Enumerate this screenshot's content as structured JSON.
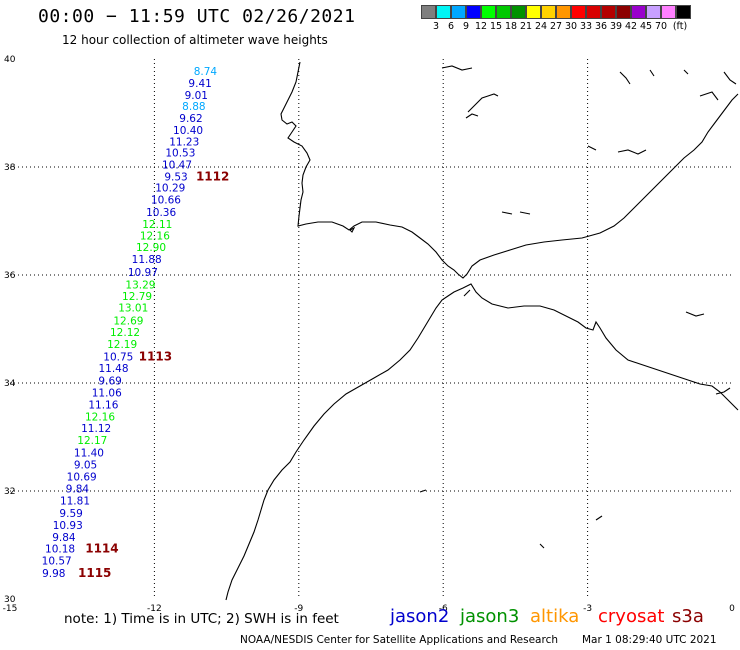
{
  "header": {
    "title": "00:00 − 11:59 UTC 02/26/2021",
    "subtitle": "12 hour collection of altimeter wave heights"
  },
  "colorbar": {
    "colors": [
      "#7f7f7f",
      "#00f5f5",
      "#00a8ff",
      "#0000ff",
      "#00ff00",
      "#00c800",
      "#009100",
      "#ffff00",
      "#ffd200",
      "#ff9600",
      "#ff0000",
      "#d70000",
      "#b40000",
      "#8c0000",
      "#9900cc",
      "#c8a0ff",
      "#ff80ff",
      "#000000"
    ],
    "labels": [
      "3",
      "6",
      "9",
      "12",
      "15",
      "18",
      "21",
      "24",
      "27",
      "30",
      "33",
      "36",
      "39",
      "42",
      "45",
      "70",
      "(ft)"
    ]
  },
  "chart_data": {
    "type": "scatter",
    "xlim": [
      -15,
      0
    ],
    "ylim": [
      30,
      40
    ],
    "x_ticks": [
      "-15",
      "-12",
      "-9",
      "-6",
      "-3",
      "0"
    ],
    "y_ticks": [
      "30",
      "32",
      "34",
      "36",
      "38",
      "40"
    ],
    "units": "ft",
    "points": [
      {
        "lon": -10.94,
        "lat": 39.7,
        "value": "8.74",
        "color": "#00a8ff"
      },
      {
        "lon": -11.05,
        "lat": 39.48,
        "value": "9.41",
        "color": "#0000cd"
      },
      {
        "lon": -11.13,
        "lat": 39.26,
        "value": "9.01",
        "color": "#0000cd"
      },
      {
        "lon": -11.18,
        "lat": 39.06,
        "value": "8.88",
        "color": "#00a8ff"
      },
      {
        "lon": -11.24,
        "lat": 38.83,
        "value": "9.62",
        "color": "#0000cd"
      },
      {
        "lon": -11.3,
        "lat": 38.61,
        "value": "10.40",
        "color": "#0000cd"
      },
      {
        "lon": -11.38,
        "lat": 38.4,
        "value": "11.23",
        "color": "#0000cd"
      },
      {
        "lon": -11.46,
        "lat": 38.19,
        "value": "10.53",
        "color": "#0000cd"
      },
      {
        "lon": -11.53,
        "lat": 37.97,
        "value": "10.47",
        "color": "#0000cd"
      },
      {
        "lon": -11.55,
        "lat": 37.75,
        "value": "9.53",
        "color": "#0000cd"
      },
      {
        "lon": -11.67,
        "lat": 37.55,
        "value": "10.29",
        "color": "#0000cd"
      },
      {
        "lon": -11.76,
        "lat": 37.32,
        "value": "10.66",
        "color": "#0000cd"
      },
      {
        "lon": -11.86,
        "lat": 37.09,
        "value": "10.36",
        "color": "#0000cd"
      },
      {
        "lon": -11.94,
        "lat": 36.87,
        "value": "12.11",
        "color": "#00ee00"
      },
      {
        "lon": -11.99,
        "lat": 36.66,
        "value": "12.16",
        "color": "#00ee00"
      },
      {
        "lon": -12.07,
        "lat": 36.44,
        "value": "12.90",
        "color": "#00ee00"
      },
      {
        "lon": -12.16,
        "lat": 36.22,
        "value": "11.88",
        "color": "#0000cd"
      },
      {
        "lon": -12.24,
        "lat": 35.98,
        "value": "10.97",
        "color": "#0000cd"
      },
      {
        "lon": -12.29,
        "lat": 35.75,
        "value": "13.29",
        "color": "#00ee00"
      },
      {
        "lon": -12.36,
        "lat": 35.54,
        "value": "12.79",
        "color": "#00ee00"
      },
      {
        "lon": -12.44,
        "lat": 35.32,
        "value": "13.01",
        "color": "#00ee00"
      },
      {
        "lon": -12.54,
        "lat": 35.08,
        "value": "12.69",
        "color": "#00ee00"
      },
      {
        "lon": -12.61,
        "lat": 34.87,
        "value": "12.12",
        "color": "#00ee00"
      },
      {
        "lon": -12.67,
        "lat": 34.65,
        "value": "12.19",
        "color": "#00ee00"
      },
      {
        "lon": -12.75,
        "lat": 34.42,
        "value": "10.75",
        "color": "#0000cd"
      },
      {
        "lon": -12.85,
        "lat": 34.2,
        "value": "11.48",
        "color": "#0000cd"
      },
      {
        "lon": -12.92,
        "lat": 33.97,
        "value": "9.69",
        "color": "#0000cd"
      },
      {
        "lon": -12.99,
        "lat": 33.75,
        "value": "11.06",
        "color": "#0000cd"
      },
      {
        "lon": -13.06,
        "lat": 33.53,
        "value": "11.16",
        "color": "#0000cd"
      },
      {
        "lon": -13.13,
        "lat": 33.31,
        "value": "12.16",
        "color": "#00ee00"
      },
      {
        "lon": -13.21,
        "lat": 33.09,
        "value": "11.12",
        "color": "#0000cd"
      },
      {
        "lon": -13.29,
        "lat": 32.87,
        "value": "12.17",
        "color": "#00ee00"
      },
      {
        "lon": -13.36,
        "lat": 32.64,
        "value": "11.40",
        "color": "#0000cd"
      },
      {
        "lon": -13.43,
        "lat": 32.42,
        "value": "9.05",
        "color": "#0000cd"
      },
      {
        "lon": -13.51,
        "lat": 32.19,
        "value": "10.69",
        "color": "#0000cd"
      },
      {
        "lon": -13.6,
        "lat": 31.97,
        "value": "9.84",
        "color": "#0000cd"
      },
      {
        "lon": -13.65,
        "lat": 31.75,
        "value": "11.81",
        "color": "#0000cd"
      },
      {
        "lon": -13.73,
        "lat": 31.52,
        "value": "9.59",
        "color": "#0000cd"
      },
      {
        "lon": -13.8,
        "lat": 31.3,
        "value": "10.93",
        "color": "#0000cd"
      },
      {
        "lon": -13.88,
        "lat": 31.07,
        "value": "9.84",
        "color": "#0000cd"
      },
      {
        "lon": -13.96,
        "lat": 30.86,
        "value": "10.18",
        "color": "#0000cd"
      },
      {
        "lon": -14.03,
        "lat": 30.64,
        "value": "10.57",
        "color": "#0000cd"
      },
      {
        "lon": -14.09,
        "lat": 30.41,
        "value": "9.98",
        "color": "#0000cd"
      }
    ],
    "annotations": [
      {
        "lon": -10.79,
        "lat": 37.75,
        "text": "1112",
        "color": "#8b0000"
      },
      {
        "lon": -11.98,
        "lat": 34.42,
        "text": "1113",
        "color": "#8b0000"
      },
      {
        "lon": -13.09,
        "lat": 30.86,
        "text": "1114",
        "color": "#8b0000"
      },
      {
        "lon": -13.24,
        "lat": 30.41,
        "text": "1115",
        "color": "#8b0000"
      }
    ]
  },
  "footer": {
    "note": "note: 1) Time is in UTC; 2) SWH is in feet",
    "credit": "NOAA/NESDIS Center for Satellite Applications and Research",
    "timestamp": "Mar  1 08:29:40 UTC 2021"
  },
  "legend": [
    {
      "name": "jason2",
      "color": "#0000cd"
    },
    {
      "name": "jason3",
      "color": "#009100"
    },
    {
      "name": "altika",
      "color": "#ff9600"
    },
    {
      "name": "cryosat",
      "color": "#ff0000"
    },
    {
      "name": "s3a",
      "color": "#8b0000"
    }
  ]
}
